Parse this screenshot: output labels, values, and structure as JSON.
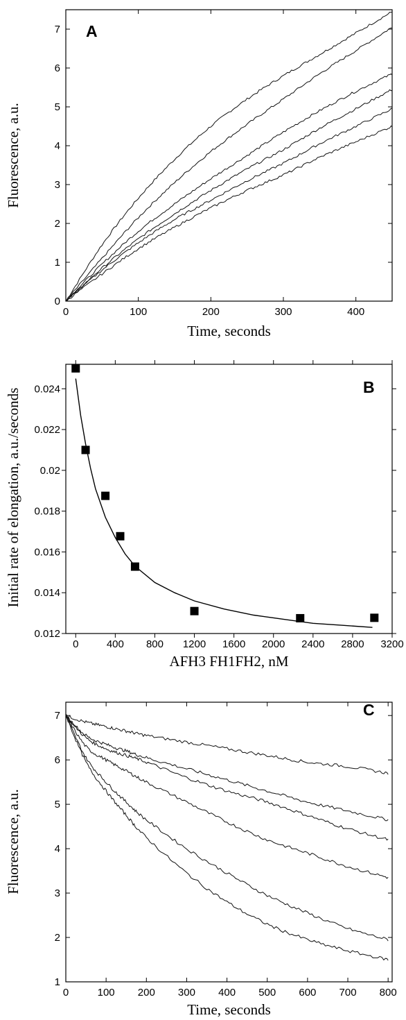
{
  "chart_data": [
    {
      "panel": "A",
      "type": "line",
      "xlabel": "Time, seconds",
      "ylabel": "Fluorescence, a.u.",
      "xlim": [
        0,
        450
      ],
      "ylim": [
        0,
        7.5
      ],
      "xticks": [
        0,
        100,
        200,
        300,
        400
      ],
      "yticks": [
        0,
        1,
        2,
        3,
        4,
        5,
        6,
        7
      ],
      "grid": false,
      "x": [
        0,
        50,
        100,
        150,
        200,
        250,
        300,
        350,
        400,
        450
      ],
      "series": [
        {
          "values": [
            0,
            1.45,
            2.65,
            3.65,
            4.5,
            5.2,
            5.8,
            6.35,
            6.9,
            7.45
          ]
        },
        {
          "values": [
            0,
            1.1,
            2.15,
            3.05,
            3.85,
            4.55,
            5.2,
            5.85,
            6.45,
            7.05
          ]
        },
        {
          "values": [
            0,
            0.95,
            1.8,
            2.5,
            3.15,
            3.75,
            4.35,
            4.9,
            5.4,
            5.85
          ]
        },
        {
          "values": [
            0,
            0.85,
            1.6,
            2.25,
            2.85,
            3.4,
            3.9,
            4.45,
            4.95,
            5.45
          ]
        },
        {
          "values": [
            0,
            0.8,
            1.5,
            2.1,
            2.6,
            3.1,
            3.55,
            4.05,
            4.5,
            4.95
          ]
        },
        {
          "values": [
            0,
            0.7,
            1.35,
            1.9,
            2.4,
            2.85,
            3.25,
            3.7,
            4.1,
            4.5
          ]
        }
      ]
    },
    {
      "panel": "B",
      "type": "scatter",
      "xlabel": "AFH3 FH1FH2, nM",
      "ylabel": "Initial rate of elongation, a.u./seconds",
      "xlim": [
        -100,
        3200
      ],
      "ylim": [
        0.012,
        0.0252
      ],
      "xticks": [
        0,
        400,
        800,
        1200,
        1600,
        2000,
        2400,
        2800,
        3200
      ],
      "yticks": [
        0.012,
        0.014,
        0.016,
        0.018,
        0.02,
        0.022,
        0.024
      ],
      "ytick_labels": [
        "0.012",
        "0.014",
        "0.016",
        "0.018",
        "0.02",
        "0.022",
        "0.024"
      ],
      "grid": false,
      "points": [
        {
          "x": 0,
          "y": 0.025
        },
        {
          "x": 100,
          "y": 0.021
        },
        {
          "x": 300,
          "y": 0.01875
        },
        {
          "x": 450,
          "y": 0.01677
        },
        {
          "x": 600,
          "y": 0.01528
        },
        {
          "x": 1200,
          "y": 0.0131
        },
        {
          "x": 2270,
          "y": 0.01275
        },
        {
          "x": 3020,
          "y": 0.01277
        }
      ],
      "fit": {
        "x": [
          0,
          50,
          100,
          150,
          200,
          300,
          400,
          500,
          600,
          800,
          1000,
          1200,
          1500,
          1800,
          2100,
          2400,
          2700,
          3000
        ],
        "y": [
          0.0245,
          0.0227,
          0.0213,
          0.0201,
          0.0191,
          0.0177,
          0.0167,
          0.0159,
          0.0153,
          0.0145,
          0.014,
          0.0136,
          0.0132,
          0.0129,
          0.0127,
          0.0125,
          0.0124,
          0.0123
        ]
      }
    },
    {
      "panel": "C",
      "type": "line",
      "xlabel": "Time, seconds",
      "ylabel": "Fluorescence, a.u.",
      "xlim": [
        0,
        810
      ],
      "ylim": [
        1,
        7.3
      ],
      "xticks": [
        0,
        100,
        200,
        300,
        400,
        500,
        600,
        700,
        800
      ],
      "yticks": [
        1,
        2,
        3,
        4,
        5,
        6,
        7
      ],
      "grid": false,
      "x": [
        0,
        50,
        100,
        150,
        200,
        300,
        400,
        500,
        600,
        700,
        800
      ],
      "series": [
        {
          "values": [
            7.0,
            6.85,
            6.75,
            6.65,
            6.55,
            6.4,
            6.25,
            6.1,
            5.95,
            5.85,
            5.7
          ]
        },
        {
          "values": [
            7.0,
            6.55,
            6.35,
            6.2,
            6.05,
            5.8,
            5.55,
            5.3,
            5.05,
            4.85,
            4.65
          ]
        },
        {
          "values": [
            7.0,
            6.5,
            6.25,
            6.1,
            5.95,
            5.6,
            5.3,
            5.05,
            4.75,
            4.45,
            4.2
          ]
        },
        {
          "values": [
            7.0,
            6.3,
            6.0,
            5.75,
            5.5,
            5.05,
            4.6,
            4.2,
            3.9,
            3.6,
            3.35
          ]
        },
        {
          "values": [
            7.0,
            6.05,
            5.5,
            5.05,
            4.65,
            4.0,
            3.45,
            2.95,
            2.55,
            2.2,
            1.95
          ]
        },
        {
          "values": [
            7.0,
            5.95,
            5.3,
            4.75,
            4.25,
            3.45,
            2.8,
            2.3,
            1.95,
            1.7,
            1.5
          ]
        }
      ]
    }
  ]
}
